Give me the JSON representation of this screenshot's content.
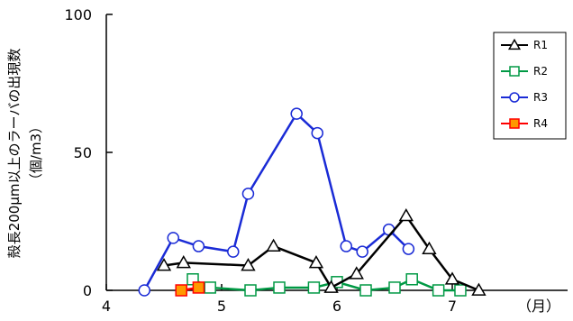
{
  "chart_data": {
    "type": "line",
    "ylabel": "殻長200μm以上のラーバの出現数",
    "ylabel_unit": "（個/m3）",
    "x_unit_label": "（月）",
    "xlim": [
      4,
      8
    ],
    "ylim": [
      0,
      100
    ],
    "x_ticks": [
      {
        "value": 4,
        "label": "4"
      },
      {
        "value": 5,
        "label": "5"
      },
      {
        "value": 6,
        "label": "6"
      },
      {
        "value": 7,
        "label": "7"
      }
    ],
    "y_ticks": [
      {
        "value": 0,
        "label": "0"
      },
      {
        "value": 50,
        "label": "50"
      },
      {
        "value": 100,
        "label": "100"
      }
    ],
    "legend_position": "top-right",
    "series": [
      {
        "name": "R1",
        "color": "#000000",
        "marker": "triangle",
        "marker_fill": "#ffffff",
        "points": [
          [
            4.5,
            9
          ],
          [
            4.67,
            10
          ],
          [
            5.23,
            9
          ],
          [
            5.45,
            16
          ],
          [
            5.82,
            10
          ],
          [
            5.95,
            1
          ],
          [
            6.17,
            6
          ],
          [
            6.6,
            27
          ],
          [
            6.8,
            15
          ],
          [
            7.0,
            4
          ],
          [
            7.23,
            0
          ]
        ]
      },
      {
        "name": "R2",
        "color": "#009944",
        "marker": "square",
        "marker_fill": "#ffffff",
        "points": [
          [
            4.75,
            4
          ],
          [
            4.9,
            1
          ],
          [
            5.25,
            0
          ],
          [
            5.5,
            1
          ],
          [
            5.8,
            1
          ],
          [
            6.0,
            3
          ],
          [
            6.25,
            0
          ],
          [
            6.5,
            1
          ],
          [
            6.65,
            4
          ],
          [
            6.88,
            0
          ],
          [
            7.07,
            0
          ]
        ]
      },
      {
        "name": "R3",
        "color": "#1a2bd6",
        "marker": "circle",
        "marker_fill": "#ffffff",
        "points": [
          [
            4.33,
            0
          ],
          [
            4.58,
            19
          ],
          [
            4.8,
            16
          ],
          [
            5.1,
            14
          ],
          [
            5.23,
            35
          ],
          [
            5.65,
            64
          ],
          [
            5.83,
            57
          ],
          [
            6.08,
            16
          ],
          [
            6.22,
            14
          ],
          [
            6.45,
            22
          ],
          [
            6.62,
            15
          ]
        ]
      },
      {
        "name": "R4",
        "color": "#ff0000",
        "marker": "square",
        "marker_fill": "#ff9900",
        "points": [
          [
            4.65,
            0
          ],
          [
            4.8,
            1
          ]
        ]
      }
    ]
  }
}
